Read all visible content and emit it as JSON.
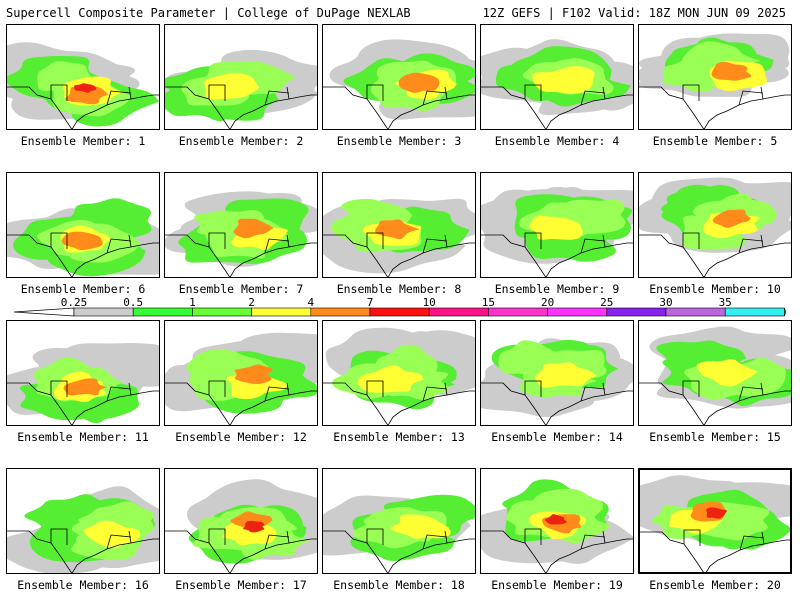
{
  "header": {
    "title_left": "Supercell Composite Parameter | College of DuPage NEXLAB",
    "title_right": "12Z GEFS | F102 Valid: 18Z MON JUN 09 2025"
  },
  "colorbar": {
    "ticks": [
      "0.25",
      "0.5",
      "1",
      "2",
      "4",
      "7",
      "10",
      "15",
      "20",
      "25",
      "30",
      "35"
    ],
    "colors": [
      "#cccccc",
      "#33ff33",
      "#66ff33",
      "#ffff33",
      "#ff8c1a",
      "#ff1111",
      "#ff1188",
      "#ff33cc",
      "#ff33ff",
      "#8822ee",
      "#bb66dd",
      "#33eeee"
    ]
  },
  "fill_colors": {
    "level1": "#cccccc",
    "level2": "#55ee33",
    "level3": "#99ff55",
    "level4": "#ffff33",
    "level5": "#ff8c1a",
    "level6": "#ee2211"
  },
  "panels": [
    {
      "label": "Ensemble Member: 1",
      "peak": 6
    },
    {
      "label": "Ensemble Member: 2",
      "peak": 4
    },
    {
      "label": "Ensemble Member: 3",
      "peak": 5
    },
    {
      "label": "Ensemble Member: 4",
      "peak": 4
    },
    {
      "label": "Ensemble Member: 5",
      "peak": 5
    },
    {
      "label": "Ensemble Member: 6",
      "peak": 5
    },
    {
      "label": "Ensemble Member: 7",
      "peak": 5
    },
    {
      "label": "Ensemble Member: 8",
      "peak": 5
    },
    {
      "label": "Ensemble Member: 9",
      "peak": 4
    },
    {
      "label": "Ensemble Member: 10",
      "peak": 5
    },
    {
      "label": "Ensemble Member: 11",
      "peak": 5
    },
    {
      "label": "Ensemble Member: 12",
      "peak": 5
    },
    {
      "label": "Ensemble Member: 13",
      "peak": 4
    },
    {
      "label": "Ensemble Member: 14",
      "peak": 4
    },
    {
      "label": "Ensemble Member: 15",
      "peak": 4
    },
    {
      "label": "Ensemble Member: 16",
      "peak": 4
    },
    {
      "label": "Ensemble Member: 17",
      "peak": 6
    },
    {
      "label": "Ensemble Member: 18",
      "peak": 4
    },
    {
      "label": "Ensemble Member: 19",
      "peak": 6
    },
    {
      "label": "Ensemble Member: 20",
      "peak": 6,
      "highlighted": true
    }
  ]
}
